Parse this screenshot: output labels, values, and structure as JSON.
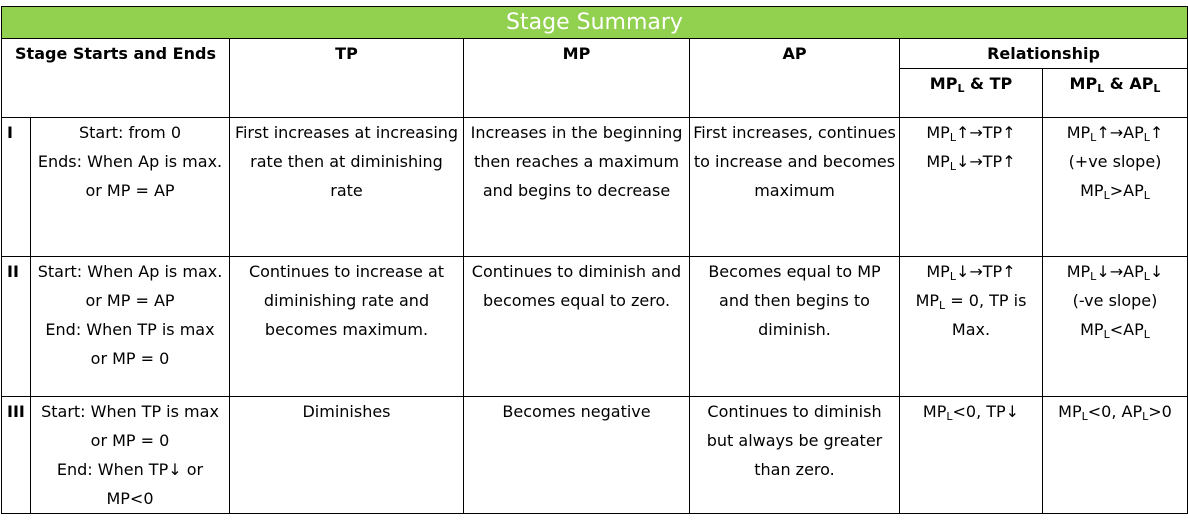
{
  "title": "Stage Summary",
  "headers": {
    "stage": "Stage Starts and Ends",
    "tp": "TP",
    "mp": "MP",
    "ap": "AP",
    "relationship": "Relationship",
    "rel_mp_tp": "MP<sub>L</sub> & TP",
    "rel_mp_ap": "MP<sub>L</sub> & AP<sub>L</sub>"
  },
  "rows": [
    {
      "stage": "I",
      "starts_ends": [
        "Start: from 0",
        "Ends: When Ap is max.",
        "or MP = AP"
      ],
      "tp": "First increases at increasing rate then at diminishing rate",
      "mp": "Increases in the beginning then reaches a maximum and begins to decrease",
      "ap": "First increases, continues to increase and becomes maximum",
      "mp_tp": [
        "MP<sub>L</sub>↑→TP↑",
        "MP<sub>L</sub>↓→TP↑"
      ],
      "mp_ap": [
        "MP<sub>L</sub>↑→AP<sub>L</sub>↑",
        "(+ve slope)",
        "MP<sub>L</sub>&gt;AP<sub>L</sub>"
      ]
    },
    {
      "stage": "II",
      "starts_ends": [
        "Start: When Ap is max.",
        "or MP = AP",
        "End: When TP is max",
        "or MP = 0"
      ],
      "tp": "Continues to increase at diminishing rate and becomes maximum.",
      "mp": "Continues to diminish and becomes equal to zero.",
      "ap": "Becomes equal to MP and then begins to diminish.",
      "mp_tp": [
        "MP<sub>L</sub>↓→TP↑",
        "MP<sub>L</sub> = 0, TP is",
        "Max."
      ],
      "mp_ap": [
        "MP<sub>L</sub>↓→AP<sub>L</sub>↓",
        "(-ve slope)",
        "MP<sub>L</sub>&lt;AP<sub>L</sub>"
      ]
    },
    {
      "stage": "III",
      "starts_ends": [
        "Start: When TP is max",
        "or MP = 0",
        "End: When TP↓ or",
        "MP<0"
      ],
      "tp": "Diminishes",
      "mp": "Becomes negative",
      "ap": "Continues to diminish but always be greater than zero.",
      "mp_tp": [
        "MP<sub>L</sub>&lt;0, TP↓"
      ],
      "mp_ap": [
        "MP<sub>L</sub>&lt;0, AP<sub>L</sub>&gt;0"
      ]
    }
  ]
}
